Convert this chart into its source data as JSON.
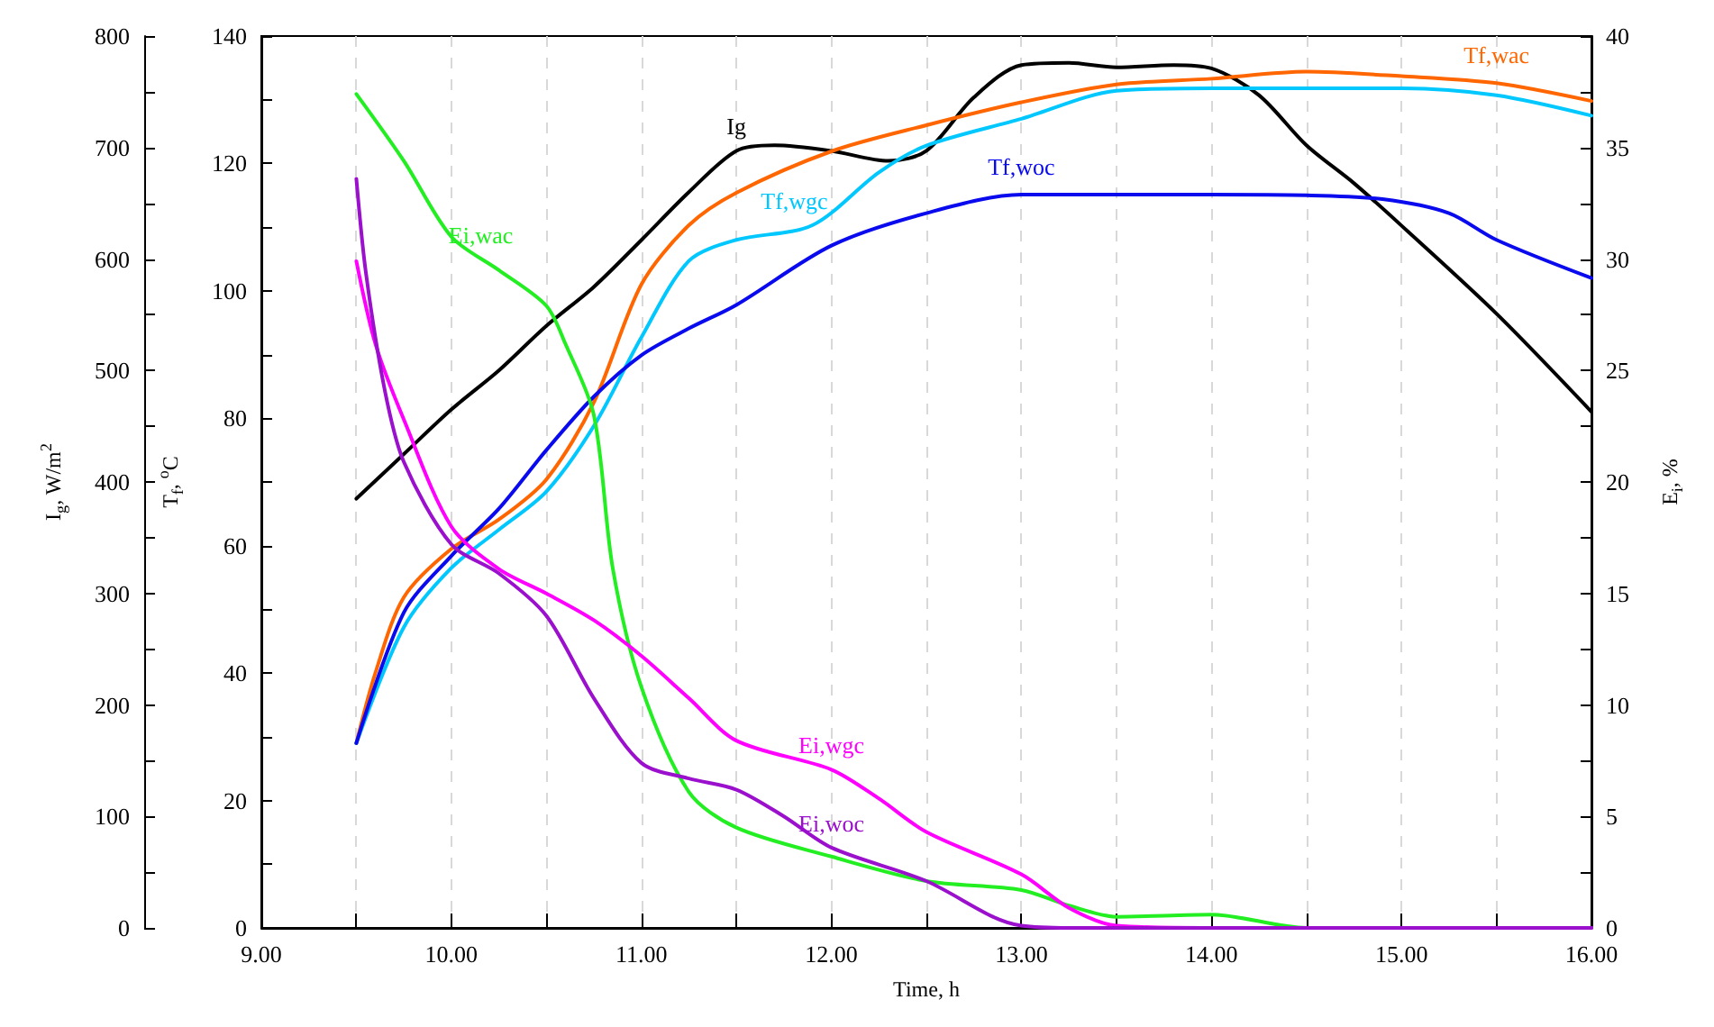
{
  "chart_data": {
    "type": "line",
    "xlabel": "Time, h",
    "ylabel": "T$_{f}$, $^{o}$C",
    "y2label": "E$_{i}$, %",
    "y3label": "I$_{g}$, W/m$^{2}$",
    "xlim": [
      9,
      16
    ],
    "xticks": [
      {
        "value": 9,
        "label": "9.00"
      },
      {
        "value": 9.5,
        "label": null
      },
      {
        "value": 10,
        "label": "10.00"
      },
      {
        "value": 10.5,
        "label": null
      },
      {
        "value": 11,
        "label": "11.00"
      },
      {
        "value": 11.5,
        "label": null
      },
      {
        "value": 12,
        "label": "12.00"
      },
      {
        "value": 12.5,
        "label": null
      },
      {
        "value": 13,
        "label": "13.00"
      },
      {
        "value": 13.5,
        "label": null
      },
      {
        "value": 14,
        "label": "14.00"
      },
      {
        "value": 14.5,
        "label": null
      },
      {
        "value": 15,
        "label": "15.00"
      },
      {
        "value": 15.5,
        "label": null
      },
      {
        "value": 16,
        "label": "16.00"
      }
    ],
    "ylim": [
      0,
      140
    ],
    "yticks": [
      0,
      {
        "value": 10,
        "label": null
      },
      20,
      {
        "value": 30,
        "label": null
      },
      40,
      {
        "value": 50,
        "label": null
      },
      60,
      {
        "value": 70,
        "label": null
      },
      80,
      {
        "value": 90,
        "label": null
      },
      100,
      {
        "value": 110,
        "label": null
      },
      120,
      {
        "value": 130,
        "label": null
      },
      140
    ],
    "y2lim": [
      0,
      40
    ],
    "y2ticks": [
      0,
      {
        "value": 2.5,
        "label": null
      },
      5,
      {
        "value": 7.5,
        "label": null
      },
      10,
      {
        "value": 12.5,
        "label": null
      },
      15,
      {
        "value": 17.5,
        "label": null
      },
      20,
      {
        "value": 22.5,
        "label": null
      },
      25,
      {
        "value": 27.5,
        "label": null
      },
      30,
      {
        "value": 32.5,
        "label": null
      },
      35,
      {
        "value": 37.5,
        "label": null
      },
      40
    ],
    "y3lim": [
      0,
      800
    ],
    "y3ticks": [
      0,
      {
        "value": 50,
        "label": null
      },
      100,
      {
        "value": 150,
        "label": null
      },
      200,
      {
        "value": 250,
        "label": null
      },
      300,
      {
        "value": 350,
        "label": null
      },
      400,
      {
        "value": 450,
        "label": null
      },
      500,
      {
        "value": 550,
        "label": null
      },
      600,
      {
        "value": 650,
        "label": null
      },
      700,
      {
        "value": 750,
        "label": null
      },
      800
    ],
    "grid": "x",
    "legend": false,
    "marker": "none",
    "line_style": "solid",
    "series": [
      {
        "name": "Ig",
        "color": "#000000",
        "axis": "y3",
        "x": [
          9.5,
          9.75,
          10,
          10.25,
          10.5,
          10.75,
          11,
          11.25,
          11.5,
          11.7,
          12,
          12.3,
          12.5,
          12.75,
          13,
          13.25,
          13.5,
          13.8,
          14,
          14.25,
          14.5,
          14.75,
          15,
          15.5,
          16
        ],
        "values": [
          385,
          425,
          465,
          500,
          540,
          575,
          617,
          660,
          697,
          702,
          697,
          688,
          697,
          745,
          774,
          776,
          772,
          774,
          771,
          747,
          702,
          668,
          630,
          551,
          463
        ]
      },
      {
        "name": "Tf,wac",
        "color": "#ff6600",
        "x": [
          9.5,
          9.6,
          9.75,
          10,
          10.25,
          10.5,
          10.75,
          11,
          11.25,
          11.5,
          12,
          12.5,
          13,
          13.5,
          14,
          14.5,
          15,
          15.5,
          16
        ],
        "values": [
          29,
          40,
          51.9,
          59.5,
          64.1,
          70.4,
          82.5,
          101,
          110.3,
          115.4,
          121.9,
          126,
          129.6,
          132.4,
          133.3,
          134.4,
          133.7,
          132.6,
          129.8
        ]
      },
      {
        "name": "Tf,wgc",
        "color": "#00c8ff",
        "x": [
          9.5,
          9.75,
          10,
          10.25,
          10.5,
          10.75,
          11,
          11.25,
          11.5,
          11.9,
          12.25,
          12.5,
          13,
          13.5,
          14,
          15,
          15.5,
          16
        ],
        "values": [
          29,
          47.2,
          56.5,
          62.5,
          68.5,
          78.8,
          92.7,
          104.7,
          108,
          110.3,
          118.6,
          122.8,
          127,
          131.4,
          131.8,
          131.8,
          130.7,
          127.5
        ]
      },
      {
        "name": "Tf,woc",
        "color": "#0a0aee",
        "x": [
          9.5,
          9.75,
          10,
          10.25,
          10.5,
          10.75,
          11,
          11.25,
          11.5,
          12,
          12.5,
          13,
          13.5,
          14,
          14.5,
          14.9,
          15.25,
          15.5,
          16
        ],
        "values": [
          29,
          49.5,
          58.4,
          65.8,
          75,
          83.4,
          89.9,
          94.1,
          97.8,
          107.1,
          112.2,
          115.1,
          115.1,
          115.1,
          115,
          114.4,
          112.2,
          108,
          102
        ]
      },
      {
        "name": "Ei,wac",
        "color": "#22ee22",
        "axis": "y2",
        "x": [
          9.5,
          9.75,
          10,
          10.25,
          10.5,
          10.6,
          10.75,
          10.85,
          11,
          11.25,
          11.5,
          12,
          12.5,
          13,
          13.25,
          13.5,
          14,
          14.5,
          15,
          16
        ],
        "values": [
          37.4,
          34.4,
          31,
          29.5,
          27.9,
          26.2,
          23,
          16.1,
          10.8,
          6.1,
          4.5,
          3.2,
          2.1,
          1.7,
          1,
          0.5,
          0.6,
          0,
          0,
          0
        ]
      },
      {
        "name": "Ei,wgc",
        "color": "#ff00ff",
        "axis": "y2",
        "x": [
          9.5,
          9.6,
          9.75,
          10,
          10.25,
          10.5,
          10.75,
          11,
          11.25,
          11.5,
          12,
          12.25,
          12.5,
          13,
          13.25,
          13.5,
          14,
          15,
          16
        ],
        "values": [
          29.9,
          26.2,
          22.8,
          18,
          16.1,
          15,
          13.8,
          12.2,
          10.3,
          8.4,
          7.1,
          5.8,
          4.3,
          2.4,
          0.9,
          0.1,
          0,
          0,
          0
        ]
      },
      {
        "name": "Ei,woc",
        "color": "#9a10cc",
        "axis": "y2",
        "x": [
          9.5,
          9.55,
          9.65,
          9.75,
          10,
          10.25,
          10.5,
          10.75,
          11,
          11.25,
          11.5,
          11.75,
          12,
          12.5,
          12.85,
          13,
          13.25,
          14,
          15,
          16
        ],
        "values": [
          33.6,
          29.4,
          24.1,
          20.9,
          17.2,
          15.9,
          14,
          10.3,
          7.4,
          6.7,
          6.2,
          5,
          3.6,
          2.1,
          0.5,
          0.1,
          0,
          0,
          0,
          0
        ]
      }
    ]
  }
}
